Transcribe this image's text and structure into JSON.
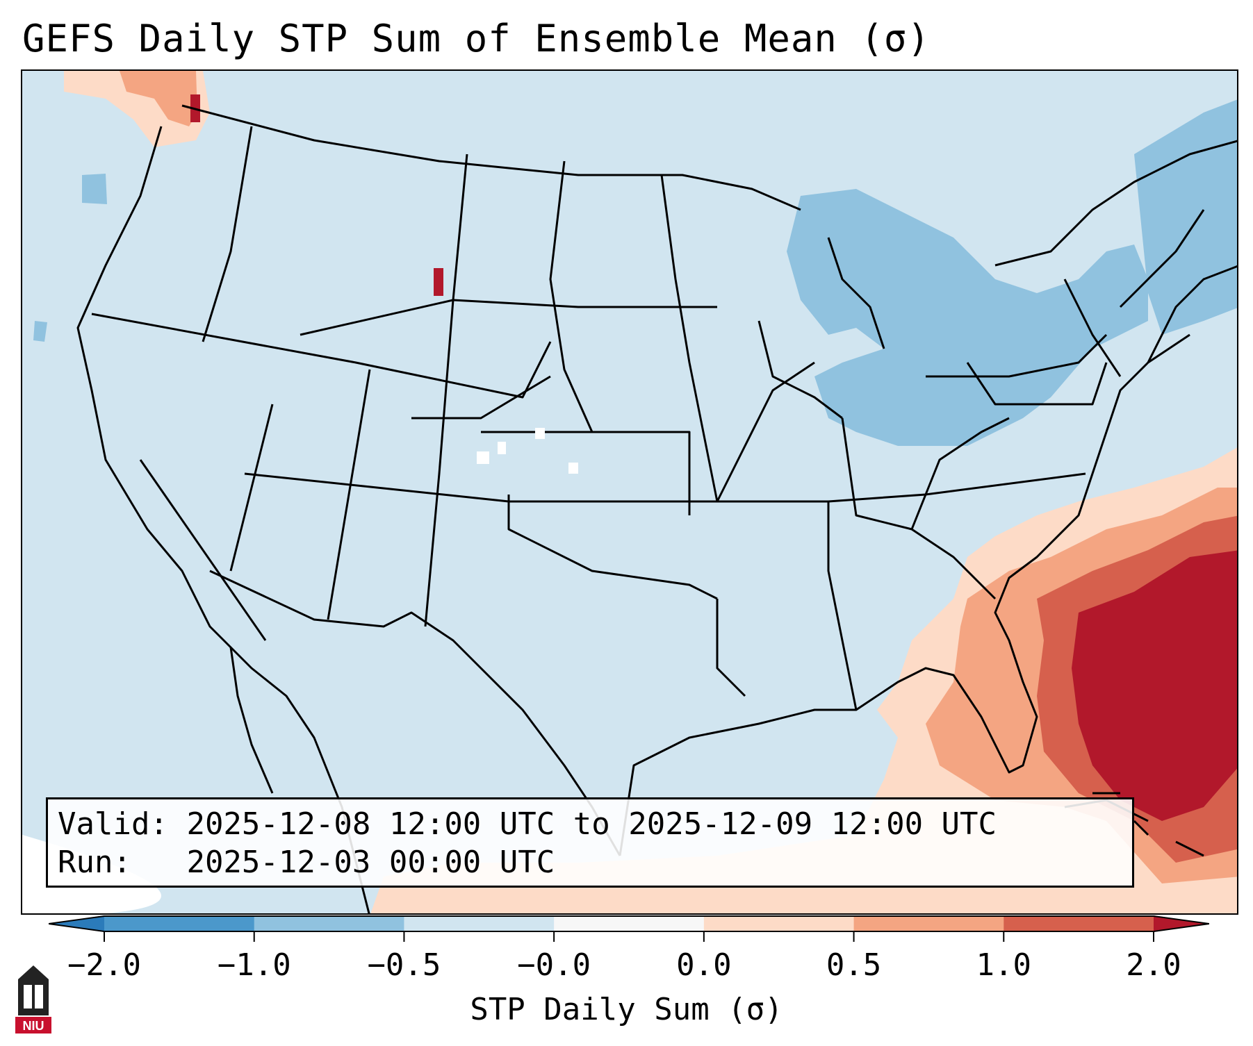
{
  "title": "GEFS Daily STP Sum of Ensemble Mean (σ)",
  "annotation": {
    "valid_label": "Valid:",
    "valid_value": "2025-12-08 12:00 UTC to 2025-12-09 12:00 UTC",
    "run_label": "Run:",
    "run_value": "2025-12-03 00:00 UTC"
  },
  "colorbar": {
    "label": "STP Daily Sum (σ)",
    "ticks": [
      "−2.0",
      "−1.0",
      "−0.5",
      "−0.0",
      "0.0",
      "0.5",
      "1.0",
      "2.0"
    ],
    "colors": [
      "#2b7bba",
      "#4b98cb",
      "#90c2df",
      "#d1e5f0",
      "#f7f7f7",
      "#fddbc7",
      "#f4a582",
      "#d6604d",
      "#b2182b"
    ],
    "extend": "both"
  },
  "map": {
    "projection": "Lambert Conformal (CONUS)",
    "background_color": "#d1e5f0",
    "regions": [
      {
        "name": "Southeast Atlantic / Bahamas",
        "category": "≥ 2.0",
        "color": "#b2182b"
      },
      {
        "name": "Florida / Georgia / Carolina coast",
        "category": "0.0 to 1.0",
        "color": "#f4a582"
      },
      {
        "name": "Gulf of Mexico / Caribbean",
        "category": "0.0 to 0.5",
        "color": "#fddbc7"
      },
      {
        "name": "Great Lakes / Northeast",
        "category": "−1.0 to −0.5",
        "color": "#90c2df"
      },
      {
        "name": "Pacific Northwest",
        "category": "0.0 to 2.0",
        "color": "#d6604d"
      }
    ]
  },
  "logo": {
    "text": "NIU",
    "color": "#c8102e"
  }
}
